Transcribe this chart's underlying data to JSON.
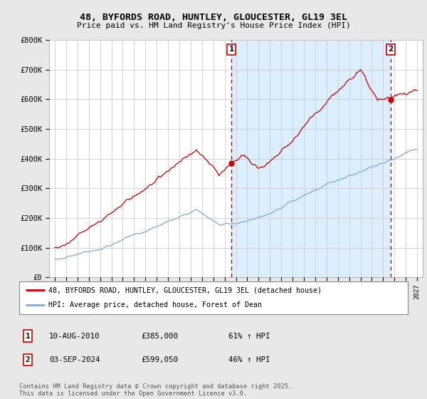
{
  "title": "48, BYFORDS ROAD, HUNTLEY, GLOUCESTER, GL19 3EL",
  "subtitle": "Price paid vs. HM Land Registry's House Price Index (HPI)",
  "background_color": "#e8e8e8",
  "plot_background_color": "#ffffff",
  "grid_color": "#cccccc",
  "red_line_color": "#cc0000",
  "blue_line_color": "#7aaadd",
  "dashed_line_color": "#cc0000",
  "shade_color": "#ddeeff",
  "sale1_x": 2010.6,
  "sale1_label": "1",
  "sale2_x": 2024.67,
  "sale2_label": "2",
  "ylim_min": 0,
  "ylim_max": 800000,
  "xlim_min": 1994.5,
  "xlim_max": 2027.5,
  "ytick_values": [
    0,
    100000,
    200000,
    300000,
    400000,
    500000,
    600000,
    700000,
    800000
  ],
  "ytick_labels": [
    "£0",
    "£100K",
    "£200K",
    "£300K",
    "£400K",
    "£500K",
    "£600K",
    "£700K",
    "£800K"
  ],
  "xtick_years": [
    1995,
    1996,
    1997,
    1998,
    1999,
    2000,
    2001,
    2002,
    2003,
    2004,
    2005,
    2006,
    2007,
    2008,
    2009,
    2010,
    2011,
    2012,
    2013,
    2014,
    2015,
    2016,
    2017,
    2018,
    2019,
    2020,
    2021,
    2022,
    2023,
    2024,
    2025,
    2026,
    2027
  ],
  "legend_label_red": "48, BYFORDS ROAD, HUNTLEY, GLOUCESTER, GL19 3EL (detached house)",
  "legend_label_blue": "HPI: Average price, detached house, Forest of Dean",
  "sale1_date": "10-AUG-2010",
  "sale1_price": "£385,000",
  "sale1_pct": "61% ↑ HPI",
  "sale2_date": "03-SEP-2024",
  "sale2_price": "£599,050",
  "sale2_pct": "46% ↑ HPI",
  "footer": "Contains HM Land Registry data © Crown copyright and database right 2025.\nThis data is licensed under the Open Government Licence v3.0."
}
